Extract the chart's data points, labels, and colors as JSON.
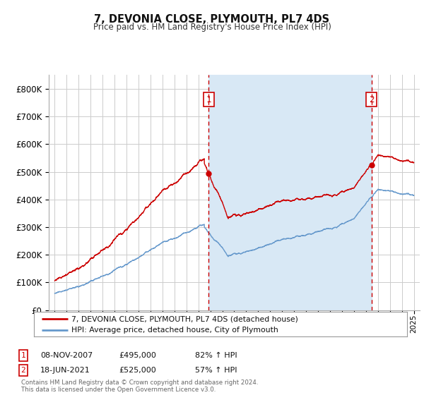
{
  "title": "7, DEVONIA CLOSE, PLYMOUTH, PL7 4DS",
  "subtitle": "Price paid vs. HM Land Registry's House Price Index (HPI)",
  "legend_line1": "7, DEVONIA CLOSE, PLYMOUTH, PL7 4DS (detached house)",
  "legend_line2": "HPI: Average price, detached house, City of Plymouth",
  "table_rows": [
    {
      "num": "1",
      "date": "08-NOV-2007",
      "price": "£495,000",
      "hpi": "82% ↑ HPI"
    },
    {
      "num": "2",
      "date": "18-JUN-2021",
      "price": "£525,000",
      "hpi": "57% ↑ HPI"
    }
  ],
  "footnote": "Contains HM Land Registry data © Crown copyright and database right 2024.\nThis data is licensed under the Open Government Licence v3.0.",
  "hpi_line_color": "#6699cc",
  "price_line_color": "#cc0000",
  "dashed_line_color": "#cc0000",
  "shade_color": "#d8e8f5",
  "background_color": "#ffffff",
  "grid_color": "#cccccc",
  "ylim": [
    0,
    850000
  ],
  "yticks": [
    0,
    100000,
    200000,
    300000,
    400000,
    500000,
    600000,
    700000,
    800000
  ],
  "sale1_x": 2007.86,
  "sale1_y": 495000,
  "sale2_x": 2021.46,
  "sale2_y": 525000,
  "xmin": 1994.5,
  "xmax": 2025.5
}
